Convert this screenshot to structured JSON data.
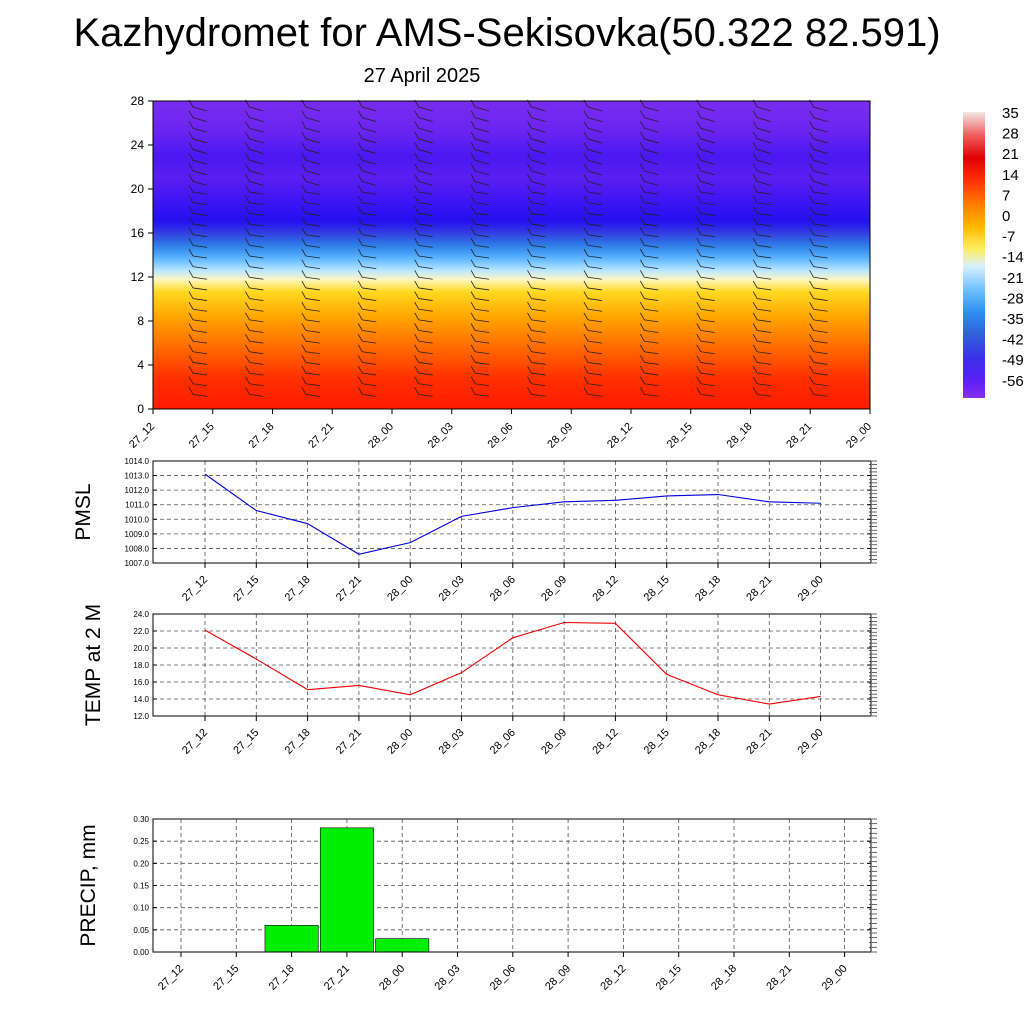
{
  "title": "Kazhydromet for AMS-Sekisovka(50.322 82.591)",
  "subtitle": "27 April 2025",
  "colors": {
    "pmsl_line": "#0000dd",
    "temp_line": "#ee0000",
    "precip_bar": "#00ee00",
    "colorbar": [
      "#f0e0e0",
      "#f06060",
      "#e00000",
      "#ff4000",
      "#ff8000",
      "#ffc000",
      "#ffff80",
      "#80d0ff",
      "#40a0ff",
      "#2060e0",
      "#2020ff",
      "#6020ff",
      "#8020ff"
    ]
  },
  "chart_data": [
    {
      "type": "heatmap",
      "title": "",
      "xlabel": "",
      "ylabel": "",
      "x": [
        "27_12",
        "27_15",
        "27_18",
        "27_21",
        "28_00",
        "28_03",
        "28_06",
        "28_09",
        "28_12",
        "28_15",
        "28_18",
        "28_21",
        "29_00"
      ],
      "yticks": [
        "0",
        "4",
        "8",
        "12",
        "16",
        "20",
        "24",
        "28"
      ],
      "ylim": [
        0,
        28
      ],
      "colorbar_labels": [
        "35",
        "28",
        "21",
        "14",
        "7",
        "0",
        "-7",
        "-14",
        "-21",
        "-28",
        "-35",
        "-42",
        "-49",
        "-56"
      ],
      "colorbar_range": [
        -56,
        35
      ],
      "temperature_profile_by_level": [
        {
          "level": 0,
          "value": 21
        },
        {
          "level": 4,
          "value": 18
        },
        {
          "level": 8,
          "value": 7
        },
        {
          "level": 10,
          "value": 0
        },
        {
          "level": 12,
          "value": -7
        },
        {
          "level": 13,
          "value": -14
        },
        {
          "level": 14,
          "value": -21
        },
        {
          "level": 15,
          "value": -35
        },
        {
          "level": 17,
          "value": -49
        },
        {
          "level": 19,
          "value": -56
        },
        {
          "level": 22,
          "value": -56
        },
        {
          "level": 24,
          "value": -49
        },
        {
          "level": 28,
          "value": -56
        }
      ],
      "overlay": "wind barbs"
    },
    {
      "type": "line",
      "ylabel": "PMSL",
      "xlabel": "",
      "x": [
        "27_12",
        "27_15",
        "27_18",
        "27_21",
        "28_00",
        "28_03",
        "28_06",
        "28_09",
        "28_12",
        "28_15",
        "28_18",
        "28_21",
        "29_00"
      ],
      "yticks": [
        "1007.0",
        "1008.0",
        "1009.0",
        "1010.0",
        "1011.0",
        "1012.0",
        "1013.0",
        "1014.0"
      ],
      "ylim": [
        1007.0,
        1014.0
      ],
      "grid": true,
      "series": [
        {
          "values": [
            1013.1,
            1010.6,
            1009.7,
            1007.6,
            1008.4,
            1010.2,
            1010.8,
            1011.2,
            1011.3,
            1011.6,
            1011.7,
            1011.2,
            1011.1
          ]
        }
      ]
    },
    {
      "type": "line",
      "ylabel": "TEMP at 2 M",
      "xlabel": "",
      "x": [
        "27_12",
        "27_15",
        "27_18",
        "27_21",
        "28_00",
        "28_03",
        "28_06",
        "28_09",
        "28_12",
        "28_15",
        "28_18",
        "28_21",
        "29_00"
      ],
      "yticks": [
        "12.0",
        "14.0",
        "16.0",
        "18.0",
        "20.0",
        "22.0",
        "24.0"
      ],
      "ylim": [
        12.0,
        24.0
      ],
      "grid": true,
      "series": [
        {
          "values": [
            22.1,
            18.7,
            15.1,
            15.6,
            14.5,
            17.1,
            21.2,
            23.0,
            22.9,
            16.9,
            14.5,
            13.4,
            14.3
          ]
        }
      ]
    },
    {
      "type": "bar",
      "ylabel": "PRECIP, mm",
      "xlabel": "",
      "categories": [
        "27_12",
        "27_15",
        "27_18",
        "27_21",
        "28_00",
        "28_03",
        "28_06",
        "28_09",
        "28_12",
        "28_15",
        "28_18",
        "28_21",
        "29_00"
      ],
      "yticks": [
        "0.00",
        "0.05",
        "0.10",
        "0.15",
        "0.20",
        "0.25",
        "0.30"
      ],
      "ylim": [
        0,
        0.3
      ],
      "grid": true,
      "values": [
        0,
        0,
        0.06,
        0.28,
        0.03,
        0,
        0,
        0,
        0,
        0,
        0,
        0,
        0
      ]
    }
  ]
}
